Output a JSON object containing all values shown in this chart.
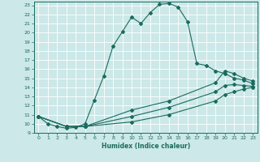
{
  "xlabel": "Humidex (Indice chaleur)",
  "bg_color": "#cce8e8",
  "grid_color": "#ffffff",
  "line_color": "#1a6b5e",
  "xlim": [
    -0.5,
    23.5
  ],
  "ylim": [
    9,
    23.4
  ],
  "yticks": [
    9,
    10,
    11,
    12,
    13,
    14,
    15,
    16,
    17,
    18,
    19,
    20,
    21,
    22,
    23
  ],
  "xticks": [
    0,
    1,
    2,
    3,
    4,
    5,
    6,
    7,
    8,
    9,
    10,
    11,
    12,
    13,
    14,
    15,
    16,
    17,
    18,
    19,
    20,
    21,
    22,
    23
  ],
  "line1_x": [
    0,
    1,
    2,
    3,
    4,
    5,
    6,
    7,
    8,
    9,
    10,
    11,
    12,
    13,
    14,
    15,
    16,
    17,
    18,
    19,
    20,
    21,
    22,
    23
  ],
  "line1_y": [
    10.8,
    10.0,
    9.7,
    9.5,
    9.6,
    10.0,
    12.6,
    15.2,
    18.5,
    20.1,
    21.7,
    21.0,
    22.2,
    23.1,
    23.2,
    22.8,
    21.2,
    16.6,
    16.4,
    15.8,
    15.5,
    15.0,
    14.8,
    14.4
  ],
  "line2_x": [
    0,
    3,
    5,
    10,
    14,
    19,
    20,
    21,
    22,
    23
  ],
  "line2_y": [
    10.8,
    9.7,
    9.7,
    11.5,
    12.5,
    14.5,
    15.8,
    15.5,
    15.0,
    14.7
  ],
  "line3_x": [
    0,
    3,
    5,
    10,
    14,
    19,
    20,
    21,
    22,
    23
  ],
  "line3_y": [
    10.8,
    9.7,
    9.7,
    10.8,
    11.8,
    13.5,
    14.2,
    14.3,
    14.2,
    14.1
  ],
  "line4_x": [
    0,
    3,
    5,
    10,
    14,
    19,
    20,
    21,
    22,
    23
  ],
  "line4_y": [
    10.8,
    9.7,
    9.7,
    10.2,
    11.0,
    12.5,
    13.2,
    13.5,
    13.8,
    14.0
  ]
}
